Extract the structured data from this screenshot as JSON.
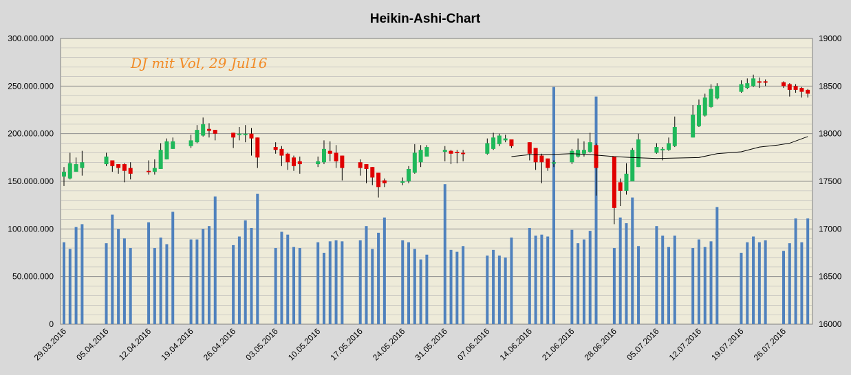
{
  "chart_data": {
    "type": "candlestick",
    "title": "Heikin-Ashi-Chart",
    "annotation": "DJ mit Vol, 29 Jul16",
    "y_left": {
      "range": [
        0,
        300000000
      ],
      "ticks": [
        "0",
        "50.000.000",
        "100.000.000",
        "150.000.000",
        "200.000.000",
        "250.000.000",
        "300.000.000"
      ]
    },
    "y_right": {
      "range": [
        16000,
        19000
      ],
      "ticks": [
        "16000",
        "16500",
        "17000",
        "17500",
        "18000",
        "18500",
        "19000"
      ]
    },
    "x_tick_labels": [
      "29.03.2016",
      "05.04.2016",
      "12.04.2016",
      "19.04.2016",
      "26.04.2016",
      "03.05.2016",
      "10.05.2016",
      "17.05.2016",
      "24.05.2016",
      "31.05.2016",
      "07.06.2016",
      "14.06.2016",
      "21.06.2016",
      "28.06.2016",
      "05.07.2016",
      "12.07.2016",
      "19.07.2016",
      "26.07.2016"
    ],
    "grid": true,
    "candle_colors": {
      "up": "#1fb85a",
      "down": "#e00000"
    },
    "volume_color": "#4f81bd",
    "ma_color": "#000000",
    "days": [
      {
        "d": 0,
        "o": 17550,
        "c": 17600,
        "h": 17650,
        "l": 17450,
        "v": 86000000
      },
      {
        "d": 1,
        "o": 17530,
        "c": 17690,
        "h": 17800,
        "l": 17520,
        "v": 79000000
      },
      {
        "d": 2,
        "o": 17600,
        "c": 17680,
        "h": 17750,
        "l": 17600,
        "v": 102000000
      },
      {
        "d": 3,
        "o": 17640,
        "c": 17700,
        "h": 17820,
        "l": 17560,
        "v": 105000000
      },
      {
        "d": 7,
        "o": 17680,
        "c": 17760,
        "h": 17800,
        "l": 17660,
        "v": 85000000
      },
      {
        "d": 8,
        "o": 17720,
        "c": 17660,
        "h": 17720,
        "l": 17600,
        "v": 115000000
      },
      {
        "d": 9,
        "o": 17680,
        "c": 17640,
        "h": 17680,
        "l": 17580,
        "v": 100000000
      },
      {
        "d": 10,
        "o": 17680,
        "c": 17610,
        "h": 17690,
        "l": 17490,
        "v": 90000000
      },
      {
        "d": 11,
        "o": 17640,
        "c": 17580,
        "h": 17700,
        "l": 17520,
        "v": 80000000
      },
      {
        "d": 14,
        "o": 17610,
        "c": 17600,
        "h": 17720,
        "l": 17570,
        "v": 107000000
      },
      {
        "d": 15,
        "o": 17600,
        "c": 17640,
        "h": 17730,
        "l": 17570,
        "v": 80000000
      },
      {
        "d": 16,
        "o": 17630,
        "c": 17830,
        "h": 17900,
        "l": 17630,
        "v": 91000000
      },
      {
        "d": 17,
        "o": 17730,
        "c": 17920,
        "h": 17950,
        "l": 17730,
        "v": 84000000
      },
      {
        "d": 18,
        "o": 17840,
        "c": 17920,
        "h": 17960,
        "l": 17840,
        "v": 118000000
      },
      {
        "d": 21,
        "o": 17870,
        "c": 17930,
        "h": 17990,
        "l": 17850,
        "v": 89000000
      },
      {
        "d": 22,
        "o": 17910,
        "c": 18040,
        "h": 18090,
        "l": 17900,
        "v": 89000000
      },
      {
        "d": 23,
        "o": 17980,
        "c": 18100,
        "h": 18170,
        "l": 17970,
        "v": 100000000
      },
      {
        "d": 24,
        "o": 18050,
        "c": 18030,
        "h": 18110,
        "l": 17960,
        "v": 103000000
      },
      {
        "d": 25,
        "o": 18040,
        "c": 18000,
        "h": 18040,
        "l": 17930,
        "v": 134000000
      },
      {
        "d": 28,
        "o": 18010,
        "c": 17960,
        "h": 18010,
        "l": 17850,
        "v": 83000000
      },
      {
        "d": 29,
        "o": 17990,
        "c": 18000,
        "h": 18070,
        "l": 17930,
        "v": 92000000
      },
      {
        "d": 30,
        "o": 17990,
        "c": 18000,
        "h": 18090,
        "l": 17910,
        "v": 109000000
      },
      {
        "d": 31,
        "o": 18000,
        "c": 17950,
        "h": 18060,
        "l": 17770,
        "v": 101000000
      },
      {
        "d": 32,
        "o": 17960,
        "c": 17750,
        "h": 17960,
        "l": 17640,
        "v": 137000000
      },
      {
        "d": 35,
        "o": 17860,
        "c": 17830,
        "h": 17910,
        "l": 17790,
        "v": 80000000
      },
      {
        "d": 36,
        "o": 17840,
        "c": 17770,
        "h": 17870,
        "l": 17660,
        "v": 97000000
      },
      {
        "d": 37,
        "o": 17790,
        "c": 17700,
        "h": 17800,
        "l": 17620,
        "v": 94000000
      },
      {
        "d": 38,
        "o": 17750,
        "c": 17660,
        "h": 17770,
        "l": 17610,
        "v": 81000000
      },
      {
        "d": 39,
        "o": 17710,
        "c": 17680,
        "h": 17760,
        "l": 17580,
        "v": 80000000
      },
      {
        "d": 42,
        "o": 17680,
        "c": 17710,
        "h": 17760,
        "l": 17650,
        "v": 86000000
      },
      {
        "d": 43,
        "o": 17700,
        "c": 17840,
        "h": 17930,
        "l": 17680,
        "v": 75000000
      },
      {
        "d": 44,
        "o": 17820,
        "c": 17790,
        "h": 17920,
        "l": 17710,
        "v": 87000000
      },
      {
        "d": 45,
        "o": 17800,
        "c": 17710,
        "h": 17880,
        "l": 17640,
        "v": 88000000
      },
      {
        "d": 46,
        "o": 17770,
        "c": 17640,
        "h": 17770,
        "l": 17510,
        "v": 87000000
      },
      {
        "d": 49,
        "o": 17700,
        "c": 17640,
        "h": 17730,
        "l": 17560,
        "v": 88000000
      },
      {
        "d": 50,
        "o": 17680,
        "c": 17630,
        "h": 17680,
        "l": 17480,
        "v": 103000000
      },
      {
        "d": 51,
        "o": 17650,
        "c": 17540,
        "h": 17650,
        "l": 17460,
        "v": 79000000
      },
      {
        "d": 52,
        "o": 17590,
        "c": 17440,
        "h": 17590,
        "l": 17330,
        "v": 96000000
      },
      {
        "d": 53,
        "o": 17510,
        "c": 17480,
        "h": 17530,
        "l": 17440,
        "v": 112000000
      },
      {
        "d": 56,
        "o": 17490,
        "c": 17500,
        "h": 17540,
        "l": 17460,
        "v": 88000000
      },
      {
        "d": 57,
        "o": 17500,
        "c": 17630,
        "h": 17660,
        "l": 17480,
        "v": 86000000
      },
      {
        "d": 58,
        "o": 17590,
        "c": 17800,
        "h": 17890,
        "l": 17580,
        "v": 79000000
      },
      {
        "d": 59,
        "o": 17700,
        "c": 17830,
        "h": 17880,
        "l": 17650,
        "v": 68000000
      },
      {
        "d": 60,
        "o": 17760,
        "c": 17860,
        "h": 17880,
        "l": 17760,
        "v": 73000000
      },
      {
        "d": 63,
        "o": 17810,
        "c": 17830,
        "h": 17870,
        "l": 17710,
        "v": 147000000
      },
      {
        "d": 64,
        "o": 17820,
        "c": 17790,
        "h": 17830,
        "l": 17680,
        "v": 78000000
      },
      {
        "d": 65,
        "o": 17810,
        "c": 17800,
        "h": 17830,
        "l": 17690,
        "v": 76000000
      },
      {
        "d": 66,
        "o": 17800,
        "c": 17790,
        "h": 17830,
        "l": 17710,
        "v": 82000000
      },
      {
        "d": 70,
        "o": 17790,
        "c": 17900,
        "h": 17950,
        "l": 17780,
        "v": 72000000
      },
      {
        "d": 71,
        "o": 17840,
        "c": 17960,
        "h": 18010,
        "l": 17830,
        "v": 78000000
      },
      {
        "d": 72,
        "o": 17890,
        "c": 17980,
        "h": 18000,
        "l": 17870,
        "v": 72000000
      },
      {
        "d": 73,
        "o": 17930,
        "c": 17950,
        "h": 17990,
        "l": 17910,
        "v": 70000000
      },
      {
        "d": 74,
        "o": 17940,
        "c": 17870,
        "h": 17940,
        "l": 17850,
        "v": 91000000
      },
      {
        "d": 77,
        "o": 17910,
        "c": 17790,
        "h": 17910,
        "l": 17720,
        "v": 101000000
      },
      {
        "d": 78,
        "o": 17850,
        "c": 17700,
        "h": 17850,
        "l": 17620,
        "v": 93000000
      },
      {
        "d": 79,
        "o": 17770,
        "c": 17700,
        "h": 17790,
        "l": 17480,
        "v": 94000000
      },
      {
        "d": 80,
        "o": 17740,
        "c": 17640,
        "h": 17740,
        "l": 17610,
        "v": 92000000
      },
      {
        "d": 81,
        "o": 17690,
        "c": 17700,
        "h": 17720,
        "l": 17650,
        "v": 249000000
      },
      {
        "d": 84,
        "o": 17700,
        "c": 17820,
        "h": 17840,
        "l": 17680,
        "v": 99000000
      },
      {
        "d": 85,
        "o": 17760,
        "c": 17830,
        "h": 17950,
        "l": 17750,
        "v": 85000000
      },
      {
        "d": 86,
        "o": 17790,
        "c": 17830,
        "h": 17920,
        "l": 17760,
        "v": 89000000
      },
      {
        "d": 87,
        "o": 17810,
        "c": 17910,
        "h": 18010,
        "l": 17800,
        "v": 98000000
      },
      {
        "d": 88,
        "o": 17880,
        "c": 17640,
        "h": 17900,
        "l": 17350,
        "v": 239000000
      },
      {
        "d": 91,
        "o": 17760,
        "c": 17220,
        "h": 17760,
        "l": 17050,
        "v": 80000000
      },
      {
        "d": 92,
        "o": 17490,
        "c": 17400,
        "h": 17530,
        "l": 17240,
        "v": 112000000
      },
      {
        "d": 93,
        "o": 17400,
        "c": 17580,
        "h": 17690,
        "l": 17360,
        "v": 106000000
      },
      {
        "d": 94,
        "o": 17500,
        "c": 17830,
        "h": 17850,
        "l": 17500,
        "v": 133000000
      },
      {
        "d": 95,
        "o": 17650,
        "c": 17940,
        "h": 18000,
        "l": 17650,
        "v": 82000000
      },
      {
        "d": 98,
        "o": 17800,
        "c": 17860,
        "h": 17900,
        "l": 17790,
        "v": 103000000
      },
      {
        "d": 99,
        "o": 17830,
        "c": 17840,
        "h": 17860,
        "l": 17720,
        "v": 93000000
      },
      {
        "d": 100,
        "o": 17830,
        "c": 17900,
        "h": 17960,
        "l": 17820,
        "v": 81000000
      },
      {
        "d": 101,
        "o": 17870,
        "c": 18070,
        "h": 18180,
        "l": 17860,
        "v": 93000000
      },
      {
        "d": 104,
        "o": 17960,
        "c": 18200,
        "h": 18300,
        "l": 17960,
        "v": 80000000
      },
      {
        "d": 105,
        "o": 18080,
        "c": 18300,
        "h": 18360,
        "l": 18070,
        "v": 89000000
      },
      {
        "d": 106,
        "o": 18190,
        "c": 18380,
        "h": 18420,
        "l": 18180,
        "v": 81000000
      },
      {
        "d": 107,
        "o": 18280,
        "c": 18470,
        "h": 18520,
        "l": 18270,
        "v": 87000000
      },
      {
        "d": 108,
        "o": 18370,
        "c": 18500,
        "h": 18530,
        "l": 18360,
        "v": 123000000
      },
      {
        "d": 112,
        "o": 18440,
        "c": 18520,
        "h": 18560,
        "l": 18430,
        "v": 75000000
      },
      {
        "d": 113,
        "o": 18480,
        "c": 18530,
        "h": 18580,
        "l": 18470,
        "v": 86000000
      },
      {
        "d": 114,
        "o": 18500,
        "c": 18580,
        "h": 18620,
        "l": 18490,
        "v": 92000000
      },
      {
        "d": 115,
        "o": 18550,
        "c": 18540,
        "h": 18590,
        "l": 18480,
        "v": 86000000
      },
      {
        "d": 116,
        "o": 18550,
        "c": 18540,
        "h": 18570,
        "l": 18500,
        "v": 88000000
      },
      {
        "d": 119,
        "o": 18540,
        "c": 18500,
        "h": 18550,
        "l": 18480,
        "v": 77000000
      },
      {
        "d": 120,
        "o": 18520,
        "c": 18460,
        "h": 18530,
        "l": 18390,
        "v": 85000000
      },
      {
        "d": 121,
        "o": 18500,
        "c": 18460,
        "h": 18520,
        "l": 18430,
        "v": 111000000
      },
      {
        "d": 122,
        "o": 18480,
        "c": 18440,
        "h": 18490,
        "l": 18380,
        "v": 86000000
      },
      {
        "d": 123,
        "o": 18460,
        "c": 18420,
        "h": 18470,
        "l": 18380,
        "v": 111000000
      }
    ],
    "ma": [
      {
        "d": 74,
        "y": 17760
      },
      {
        "d": 77,
        "y": 17780
      },
      {
        "d": 80,
        "y": 17780
      },
      {
        "d": 84,
        "y": 17790
      },
      {
        "d": 87,
        "y": 17780
      },
      {
        "d": 91,
        "y": 17760
      },
      {
        "d": 94,
        "y": 17750
      },
      {
        "d": 98,
        "y": 17740
      },
      {
        "d": 105,
        "y": 17750
      },
      {
        "d": 108,
        "y": 17790
      },
      {
        "d": 112,
        "y": 17810
      },
      {
        "d": 115,
        "y": 17860
      },
      {
        "d": 118,
        "y": 17880
      },
      {
        "d": 120,
        "y": 17900
      },
      {
        "d": 123,
        "y": 17970
      }
    ]
  }
}
